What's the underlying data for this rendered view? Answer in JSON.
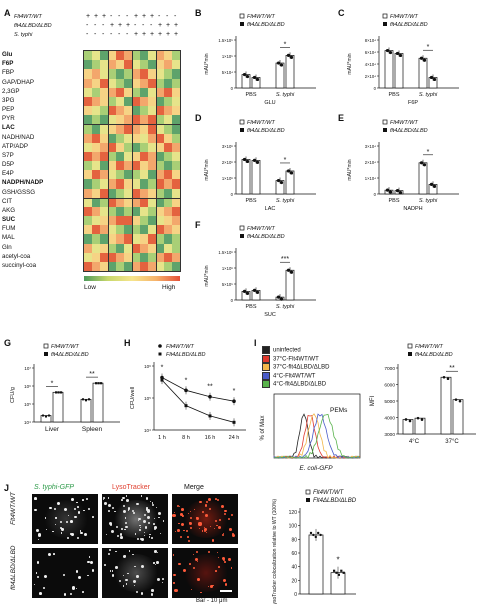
{
  "panels": {
    "A": "A",
    "B": "B",
    "C": "C",
    "D": "D",
    "E": "E",
    "F": "F",
    "G": "G",
    "H": "H",
    "I": "I",
    "J": "J"
  },
  "genotypes": {
    "wt": "Flt4WT/WT",
    "mut": "flt4ΔLBD/ΔLBD",
    "mut_alt": "Flt4ΔLBD/ΔLBD",
    "wt_short": "Flt4",
    "mut_short": "flt4"
  },
  "heatmap": {
    "header_rows": [
      {
        "label": "Flt4WT/WT",
        "marks": [
          "+",
          "+",
          "+",
          "-",
          "-",
          "-",
          "+",
          "+",
          "+",
          "-",
          "-",
          "-"
        ]
      },
      {
        "label": "flt4ΔLBD/ΔLBD",
        "marks": [
          "-",
          "-",
          "-",
          "+",
          "+",
          "+",
          "-",
          "-",
          "-",
          "+",
          "+",
          "+"
        ]
      },
      {
        "label": "S. typhi",
        "marks": [
          "-",
          "-",
          "-",
          "-",
          "-",
          "-",
          "+",
          "+",
          "+",
          "+",
          "+",
          "+"
        ]
      }
    ],
    "metabolites": [
      "Glu",
      "F6P",
      "FBP",
      "GAP/DHAP",
      "2,3GP",
      "3PG",
      "PEP",
      "PYR",
      "LAC",
      "NADH/NAD",
      "ATP/ADP",
      "S7P",
      "D5P",
      "E4P",
      "NADPH/NADP",
      "GSH/GSSG",
      "CIT",
      "AKG",
      "SUC",
      "FUM",
      "MAL",
      "Gln",
      "acetyl-coa",
      "succinyl-coa"
    ],
    "bold": [
      0,
      1,
      8,
      14,
      18
    ],
    "legend_low": "Low",
    "legend_high": "High",
    "grid": [
      [
        2,
        3,
        1,
        4,
        6,
        5,
        2,
        1,
        3,
        5,
        4,
        2
      ],
      [
        1,
        2,
        3,
        5,
        4,
        6,
        3,
        2,
        1,
        4,
        5,
        3
      ],
      [
        4,
        5,
        3,
        2,
        1,
        2,
        5,
        6,
        4,
        3,
        2,
        1
      ],
      [
        5,
        4,
        6,
        3,
        2,
        1,
        4,
        5,
        6,
        2,
        1,
        2
      ],
      [
        3,
        2,
        4,
        5,
        6,
        4,
        2,
        1,
        3,
        5,
        6,
        4
      ],
      [
        6,
        5,
        4,
        2,
        3,
        1,
        6,
        5,
        4,
        1,
        2,
        3
      ],
      [
        4,
        3,
        2,
        6,
        5,
        4,
        1,
        2,
        3,
        6,
        5,
        4
      ],
      [
        1,
        2,
        1,
        3,
        4,
        5,
        6,
        5,
        6,
        2,
        3,
        1
      ],
      [
        2,
        1,
        3,
        4,
        5,
        6,
        5,
        4,
        6,
        3,
        2,
        1
      ],
      [
        5,
        6,
        4,
        1,
        2,
        3,
        4,
        3,
        5,
        6,
        4,
        2
      ],
      [
        3,
        4,
        5,
        6,
        4,
        2,
        1,
        2,
        3,
        4,
        6,
        5
      ],
      [
        6,
        5,
        6,
        2,
        1,
        3,
        4,
        6,
        5,
        1,
        2,
        3
      ],
      [
        2,
        3,
        1,
        4,
        6,
        5,
        6,
        4,
        5,
        2,
        1,
        2
      ],
      [
        4,
        6,
        5,
        3,
        2,
        1,
        2,
        3,
        1,
        5,
        6,
        4
      ],
      [
        1,
        2,
        3,
        5,
        6,
        4,
        3,
        1,
        2,
        6,
        5,
        6
      ],
      [
        5,
        4,
        6,
        1,
        2,
        3,
        6,
        5,
        4,
        2,
        1,
        3
      ],
      [
        3,
        1,
        2,
        6,
        5,
        4,
        5,
        6,
        3,
        1,
        2,
        4
      ],
      [
        6,
        5,
        3,
        2,
        1,
        2,
        1,
        3,
        2,
        4,
        5,
        6
      ],
      [
        2,
        3,
        4,
        5,
        6,
        6,
        4,
        2,
        1,
        3,
        4,
        5
      ],
      [
        4,
        6,
        5,
        3,
        2,
        1,
        2,
        1,
        3,
        6,
        5,
        4
      ],
      [
        1,
        2,
        1,
        4,
        5,
        6,
        3,
        4,
        6,
        2,
        1,
        2
      ],
      [
        5,
        3,
        4,
        2,
        1,
        3,
        6,
        5,
        4,
        1,
        3,
        2
      ],
      [
        3,
        4,
        6,
        6,
        5,
        4,
        2,
        1,
        2,
        5,
        6,
        5
      ],
      [
        6,
        5,
        4,
        1,
        2,
        1,
        5,
        6,
        5,
        3,
        2,
        1
      ]
    ]
  },
  "bar_panels": [
    {
      "id": "B",
      "ylabel": "mAU*min",
      "xlabel": "GLU",
      "groups": [
        "PBS",
        "S. typhi"
      ],
      "sig": "*",
      "yticks": [
        "0",
        "5×10⁴",
        "1×10⁵",
        "1.5×10⁵"
      ]
    },
    {
      "id": "C",
      "ylabel": "mAU*min",
      "xlabel": "F6P",
      "groups": [
        "PBS",
        "S. typhi"
      ],
      "sig": "*",
      "yticks": [
        "0",
        "2×10⁴",
        "4×10⁴",
        "6×10⁴",
        "8×10⁴"
      ]
    },
    {
      "id": "D",
      "ylabel": "mAU*min",
      "xlabel": "LAC",
      "groups": [
        "PBS",
        "S. typhi"
      ],
      "sig": "*",
      "yticks": [
        "0",
        "1×10⁶",
        "2×10⁶",
        "3×10⁶"
      ]
    },
    {
      "id": "E",
      "ylabel": "mAU*min",
      "xlabel": "NADPH",
      "groups": [
        "PBS",
        "S. typhi"
      ],
      "sig": "*",
      "yticks": [
        "0",
        "1×10⁴",
        "2×10⁴",
        "3×10⁴"
      ]
    },
    {
      "id": "F",
      "ylabel": "mAU*min",
      "xlabel": "SUC",
      "groups": [
        "PBS",
        "S. typhi"
      ],
      "sig": "***",
      "yticks": [
        "0",
        "5×10⁵",
        "1×10⁶",
        "1.5×10⁶"
      ]
    }
  ],
  "panel_g": {
    "ylabel": "CFU/g",
    "groups": [
      "Liver",
      "Spleen"
    ],
    "sig": [
      "*",
      "**"
    ],
    "yticks": [
      "10⁴",
      "10⁵",
      "10⁶",
      "10⁷"
    ]
  },
  "panel_h": {
    "ylabel": "CFU/well",
    "xticks": [
      "1 h",
      "8 h",
      "16 h",
      "24 h"
    ],
    "sig": [
      "*",
      "*",
      "**",
      "*"
    ],
    "yticks": [
      "10⁴",
      "10⁵",
      "10⁶"
    ]
  },
  "panel_i_flow": {
    "legend": [
      "uninfected",
      "37°C-Flt4WT/WT",
      "37°C-flt4ΔLBD/ΔLBD",
      "4°C-Flt4WT/WT",
      "4°C-flt4ΔLBD/ΔLBD"
    ],
    "colors": [
      "#222222",
      "#e03a2e",
      "#f2b84b",
      "#4b5cc8",
      "#59b34c"
    ],
    "ylabel": "% of Max",
    "xlabel": "E. coli-GFP",
    "annotation": "PEMs"
  },
  "panel_i_bar": {
    "ylabel": "MFI",
    "groups": [
      "4°C",
      "37°C"
    ],
    "sig": "**",
    "yticks": [
      "3000",
      "4000",
      "5000",
      "6000",
      "7000"
    ]
  },
  "panel_j": {
    "columns": [
      "S. typhi-GFP",
      "LysoTracker",
      "Merge"
    ],
    "rows": [
      "Flt4WT/WT",
      "flt4ΔLBD/ΔLBD"
    ],
    "scale": "Bar - 10 μm",
    "ylabel": "LysoTracker colocalization relative to WT (100%)",
    "sig": "*",
    "yticks": [
      "0",
      "20",
      "40",
      "60",
      "80",
      "100",
      "120"
    ]
  }
}
